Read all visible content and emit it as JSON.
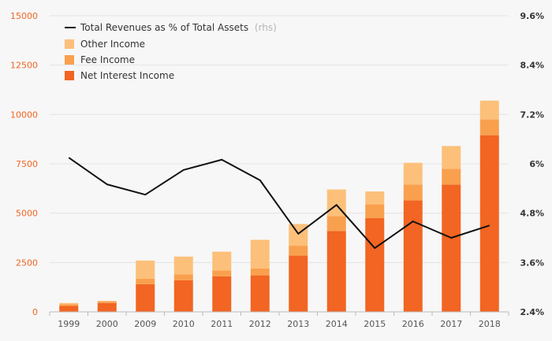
{
  "chart_data": {
    "type": "bar",
    "categories": [
      "1999",
      "2000",
      "2009",
      "2010",
      "2011",
      "2012",
      "2013",
      "2014",
      "2015",
      "2016",
      "2017",
      "2018"
    ],
    "series": [
      {
        "name": "Net Interest Income",
        "values": [
          300,
          450,
          1400,
          1600,
          1800,
          1850,
          2850,
          4100,
          4750,
          5650,
          6450,
          8950
        ],
        "color": "#f26522"
      },
      {
        "name": "Fee Income",
        "values": [
          90,
          70,
          280,
          300,
          300,
          350,
          500,
          750,
          700,
          800,
          800,
          800
        ],
        "color": "#f9a04e"
      },
      {
        "name": "Other Income",
        "values": [
          60,
          40,
          920,
          900,
          950,
          1450,
          1100,
          1350,
          650,
          1100,
          1150,
          950
        ],
        "color": "#fcc07a"
      }
    ],
    "line_series": {
      "name": "Total Revenues as % of Total Assets",
      "name_suffix": "(rhs)",
      "values": [
        6.15,
        5.5,
        5.25,
        5.85,
        6.1,
        5.6,
        4.3,
        5.0,
        3.95,
        4.6,
        4.2,
        4.5
      ],
      "color": "#111111"
    },
    "y_left": {
      "ticks": [
        "0",
        "2500",
        "5000",
        "7500",
        "10000",
        "12500",
        "15000"
      ],
      "range": [
        0,
        15000
      ]
    },
    "y_right": {
      "ticks": [
        "2.4%",
        "3.6%",
        "4.8%",
        "6%",
        "7.2%",
        "8.4%",
        "9.6%"
      ],
      "range": [
        2.4,
        9.6
      ]
    },
    "grid": true,
    "legend_position": "top-left"
  }
}
